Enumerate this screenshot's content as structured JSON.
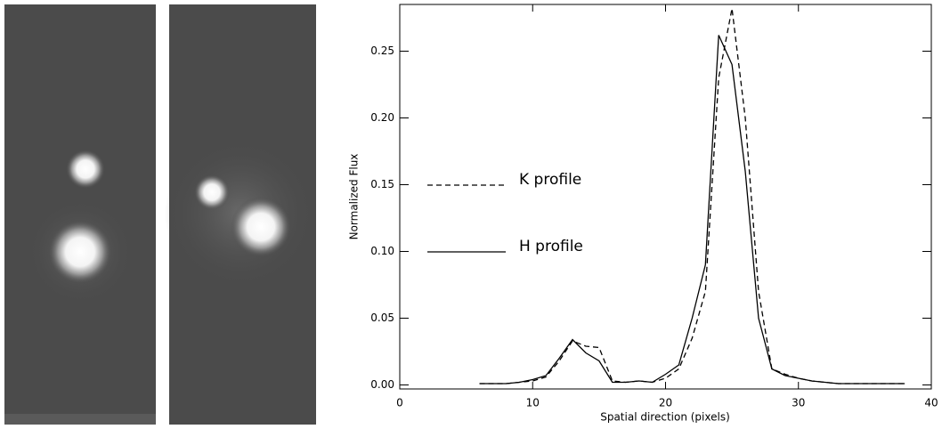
{
  "chart_data": {
    "type": "line",
    "xlabel": "Spatial direction (pixels)",
    "ylabel": "Normalized Flux",
    "x": [
      6,
      7,
      8,
      9,
      10,
      11,
      12,
      13,
      14,
      15,
      16,
      17,
      18,
      19,
      20,
      21,
      22,
      23,
      24,
      25,
      26,
      27,
      28,
      29,
      30,
      31,
      32,
      33,
      34,
      35,
      36,
      37,
      38
    ],
    "series": [
      {
        "name": "K profile",
        "color": "#000000",
        "dash": true,
        "values": [
          0.001,
          0.001,
          0.001,
          0.002,
          0.003,
          0.006,
          0.018,
          0.033,
          0.029,
          0.028,
          0.003,
          0.002,
          0.003,
          0.002,
          0.005,
          0.012,
          0.035,
          0.07,
          0.23,
          0.282,
          0.2,
          0.07,
          0.012,
          0.008,
          0.005,
          0.003,
          0.002,
          0.001,
          0.001,
          0.001,
          0.001,
          0.001,
          0.001
        ]
      },
      {
        "name": "H profile",
        "color": "#000000",
        "dash": false,
        "values": [
          0.001,
          0.001,
          0.001,
          0.002,
          0.004,
          0.007,
          0.02,
          0.034,
          0.024,
          0.018,
          0.002,
          0.002,
          0.003,
          0.002,
          0.008,
          0.015,
          0.05,
          0.09,
          0.262,
          0.24,
          0.16,
          0.05,
          0.012,
          0.007,
          0.005,
          0.003,
          0.002,
          0.001,
          0.001,
          0.001,
          0.001,
          0.001,
          0.001
        ]
      }
    ],
    "xlim": [
      0,
      40
    ],
    "xticks": [
      0,
      10,
      20,
      30,
      40
    ],
    "ylim": [
      -0.003,
      0.285
    ],
    "yticks": [
      {
        "value": 0,
        "label": "0.00"
      },
      0.05,
      {
        "value": 0.1,
        "label": "0.10"
      },
      0.15,
      {
        "value": 0.2,
        "label": "0.20"
      },
      0.25
    ]
  }
}
